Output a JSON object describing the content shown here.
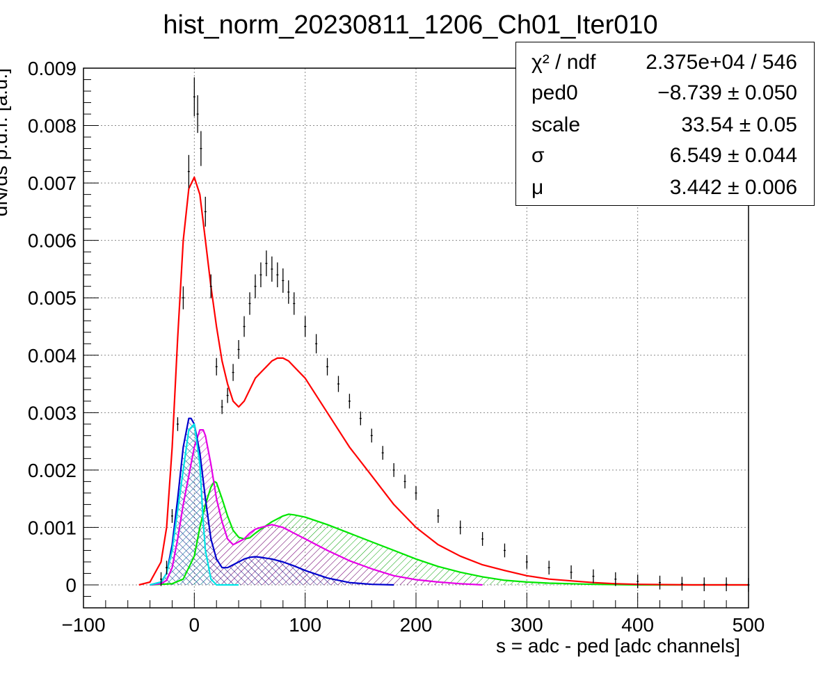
{
  "chart_data": {
    "type": "histogram-fit",
    "title": "hist_norm_20230811_1206_Ch01_Iter010",
    "xlabel": "s = adc - ped [adc channels]",
    "ylabel": "dN/ds p.d.f. [a.u.]",
    "xlim": [
      -100,
      500
    ],
    "ylim": [
      -0.0004,
      0.009
    ],
    "x_ticks": [
      -100,
      0,
      100,
      200,
      300,
      400,
      500
    ],
    "x_tick_labels": [
      "−100",
      "0",
      "100",
      "200",
      "300",
      "400",
      "500"
    ],
    "y_ticks": [
      0,
      0.001,
      0.002,
      0.003,
      0.004,
      0.005,
      0.006,
      0.007,
      0.008,
      0.009
    ],
    "y_tick_labels": [
      "0",
      "0.001",
      "0.002",
      "0.003",
      "0.004",
      "0.005",
      "0.006",
      "0.007",
      "0.008",
      "0.009"
    ],
    "grid": true,
    "colors": {
      "data": "#000000",
      "total_fit": "#ff0000",
      "component_cyan": "#00e5e5",
      "component_blue": "#0000cc",
      "component_magenta": "#e600e6",
      "component_green": "#00e600"
    },
    "stats": [
      {
        "label": "χ² / ndf",
        "value": "2.375e+04 / 546"
      },
      {
        "label": "ped0",
        "value": "−8.739 ± 0.050"
      },
      {
        "label": "scale",
        "value": "33.54 ± 0.05"
      },
      {
        "label": "σ",
        "value": "6.549 ± 0.044"
      },
      {
        "label": "μ",
        "value": "3.442 ± 0.006"
      }
    ],
    "series": [
      {
        "kind": "data-points",
        "color": "#000000",
        "x": [
          -30,
          -25,
          -20,
          -15,
          -10,
          -5,
          0,
          3,
          6,
          10,
          15,
          20,
          25,
          30,
          35,
          40,
          45,
          50,
          55,
          60,
          65,
          70,
          75,
          80,
          85,
          90,
          100,
          110,
          120,
          130,
          140,
          150,
          160,
          170,
          180,
          190,
          200,
          220,
          240,
          260,
          280,
          300,
          320,
          340,
          360,
          380,
          400,
          420,
          440,
          460,
          480,
          500
        ],
        "y": [
          0.0001,
          0.0003,
          0.0012,
          0.0028,
          0.005,
          0.0072,
          0.0085,
          0.0082,
          0.0076,
          0.0065,
          0.0052,
          0.0038,
          0.0031,
          0.0033,
          0.0037,
          0.0041,
          0.0045,
          0.0049,
          0.0052,
          0.0054,
          0.0056,
          0.0055,
          0.0054,
          0.0053,
          0.0051,
          0.0049,
          0.0045,
          0.0042,
          0.0038,
          0.0035,
          0.0032,
          0.0029,
          0.0026,
          0.0023,
          0.002,
          0.0018,
          0.0016,
          0.0012,
          0.001,
          0.0008,
          0.0006,
          0.0004,
          0.0003,
          0.00022,
          0.00015,
          0.0001,
          6e-05,
          4e-05,
          2e-05,
          1e-05,
          1e-05,
          0.0
        ]
      },
      {
        "kind": "line",
        "color": "#ff0000",
        "x": [
          -50,
          -40,
          -30,
          -25,
          -20,
          -15,
          -10,
          -5,
          0,
          5,
          10,
          15,
          20,
          25,
          30,
          35,
          40,
          45,
          50,
          55,
          60,
          65,
          70,
          75,
          80,
          85,
          90,
          100,
          120,
          140,
          160,
          180,
          200,
          220,
          240,
          260,
          280,
          300,
          320,
          340,
          360,
          380,
          400,
          450,
          500
        ],
        "y": [
          0.0,
          5e-05,
          0.0004,
          0.001,
          0.0024,
          0.0043,
          0.006,
          0.0069,
          0.0071,
          0.0068,
          0.006,
          0.0052,
          0.0045,
          0.0039,
          0.0035,
          0.0032,
          0.0031,
          0.0032,
          0.0034,
          0.0036,
          0.0037,
          0.0038,
          0.0039,
          0.00395,
          0.00395,
          0.0039,
          0.0038,
          0.0036,
          0.003,
          0.0024,
          0.0019,
          0.0014,
          0.001,
          0.0007,
          0.0005,
          0.00035,
          0.00025,
          0.00016,
          0.0001,
          7e-05,
          4e-05,
          2e-05,
          1e-05,
          0.0,
          0.0
        ]
      },
      {
        "kind": "line-hatched",
        "color": "#00e5e5",
        "x": [
          -40,
          -30,
          -25,
          -20,
          -15,
          -10,
          -5,
          0,
          5,
          8,
          10,
          15,
          20,
          30,
          40
        ],
        "y": [
          0.0,
          5e-05,
          0.0002,
          0.0006,
          0.0013,
          0.002,
          0.0027,
          0.0028,
          0.0021,
          0.0011,
          0.0006,
          0.0001,
          0.0,
          0.0,
          0.0
        ]
      },
      {
        "kind": "line-hatched",
        "color": "#0000cc",
        "x": [
          -40,
          -30,
          -25,
          -20,
          -15,
          -10,
          -5,
          -3,
          0,
          5,
          10,
          15,
          20,
          25,
          30,
          35,
          40,
          45,
          50,
          55,
          60,
          70,
          80,
          90,
          100,
          120,
          140,
          160,
          180
        ],
        "y": [
          0.0,
          5e-05,
          0.0002,
          0.0007,
          0.0015,
          0.0024,
          0.0029,
          0.0029,
          0.0028,
          0.0023,
          0.0015,
          0.0008,
          0.00045,
          0.0003,
          0.0003,
          0.00035,
          0.0004,
          0.00045,
          0.00048,
          0.00049,
          0.00048,
          0.00045,
          0.0004,
          0.00033,
          0.00025,
          0.00012,
          4e-05,
          1e-05,
          0.0
        ]
      },
      {
        "kind": "line-hatched",
        "color": "#e600e6",
        "x": [
          -40,
          -30,
          -25,
          -20,
          -15,
          -10,
          -5,
          0,
          5,
          8,
          10,
          15,
          20,
          25,
          30,
          35,
          40,
          45,
          50,
          55,
          60,
          70,
          80,
          90,
          100,
          120,
          140,
          160,
          180,
          200,
          220,
          240,
          260
        ],
        "y": [
          0.0,
          2e-05,
          8e-05,
          0.0003,
          0.0008,
          0.0014,
          0.0019,
          0.0024,
          0.0027,
          0.0027,
          0.0026,
          0.0021,
          0.0015,
          0.0011,
          0.0008,
          0.0007,
          0.00075,
          0.0008,
          0.0009,
          0.00097,
          0.001,
          0.00105,
          0.001,
          0.0009,
          0.0008,
          0.0006,
          0.00042,
          0.00028,
          0.00016,
          9e-05,
          5e-05,
          2e-05,
          0.0
        ]
      },
      {
        "kind": "line-hatched",
        "color": "#00e600",
        "x": [
          -40,
          -20,
          -10,
          0,
          5,
          10,
          15,
          18,
          20,
          25,
          30,
          35,
          40,
          45,
          50,
          55,
          60,
          70,
          80,
          85,
          90,
          100,
          120,
          140,
          160,
          180,
          200,
          220,
          240,
          260,
          280,
          300,
          320,
          340,
          360,
          400,
          450,
          500
        ],
        "y": [
          0.0,
          2e-05,
          0.0001,
          0.0005,
          0.001,
          0.0014,
          0.0017,
          0.0018,
          0.00178,
          0.0015,
          0.0012,
          0.00095,
          0.00083,
          0.0008,
          0.00082,
          0.0009,
          0.00097,
          0.0011,
          0.0012,
          0.00123,
          0.00122,
          0.00118,
          0.00105,
          0.0009,
          0.00075,
          0.0006,
          0.00045,
          0.00032,
          0.00022,
          0.00014,
          8e-05,
          5e-05,
          3e-05,
          2e-05,
          1e-05,
          0.0,
          0.0,
          0.0
        ]
      }
    ]
  }
}
